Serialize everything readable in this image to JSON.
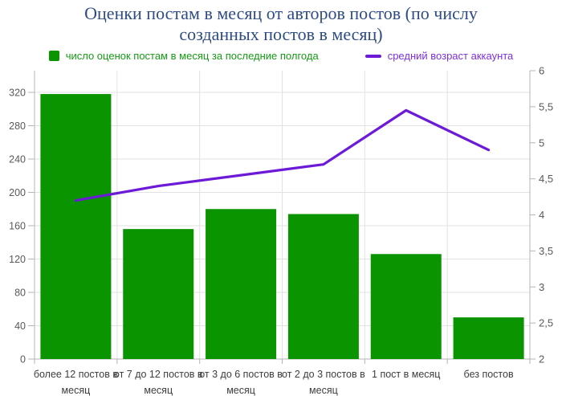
{
  "title": "Оценки постам в месяц от авторов постов (по числу созданных постов в месяц)",
  "colors": {
    "title_text": "#2e4c82",
    "bar_green": "#0a9400",
    "line_purple": "#6c1ad8",
    "legend_green_text": "#149c14",
    "legend_purple_text": "#7d30e0",
    "axis_tick_text": "#595959",
    "x_label_text": "#3d3d3d",
    "grid_line": "#e2e2e2",
    "axis_line": "#b5b5b5"
  },
  "legend": [
    {
      "label": "число оценок постам в месяц за последние полгода",
      "swatch": "square"
    },
    {
      "label": "средний возраст аккаунта",
      "swatch": "line"
    }
  ],
  "chart_data": {
    "type": "bar",
    "subtype": "combo-bar-line-dual-axis",
    "title": "Оценки постам в месяц от авторов постов (по числу созданных постов в месяц)",
    "categories": [
      "более 12 постов в месяц",
      "от 7 до 12 постов в месяц",
      "от 3 до 6 постов в месяц",
      "от 2 до 3 постов в месяц",
      "1 пост в месяц",
      "без постов"
    ],
    "category_label_lines": [
      [
        "более 12 постов в",
        "месяц"
      ],
      [
        "от 7 до 12 постов в",
        "месяц"
      ],
      [
        "от 3 до 6 постов в",
        "месяц"
      ],
      [
        "от 2 до 3 постов в",
        "месяц"
      ],
      [
        "1 пост в месяц"
      ],
      [
        "без постов"
      ]
    ],
    "series": [
      {
        "name": "число оценок постам в месяц за последние полгода",
        "type": "bar",
        "axis": "left",
        "values": [
          318,
          156,
          180,
          174,
          126,
          50
        ]
      },
      {
        "name": "средний возраст аккаунта",
        "type": "line",
        "axis": "right",
        "values": [
          4.2,
          4.4,
          4.55,
          4.7,
          5.45,
          4.9
        ]
      }
    ],
    "left_axis": {
      "min": 0,
      "max": 320,
      "tick_step": 40,
      "ticks": [
        0,
        40,
        80,
        120,
        160,
        200,
        240,
        280,
        320
      ]
    },
    "right_axis": {
      "min": 2,
      "max": 6,
      "tick_step": 0.5,
      "ticks": [
        2,
        2.5,
        3,
        3.5,
        4,
        4.5,
        5,
        5.5,
        6
      ],
      "tick_labels": [
        "2",
        "2,5",
        "3",
        "3,5",
        "4",
        "4,5",
        "5",
        "5,5",
        "6"
      ]
    },
    "grid": true,
    "legend_position": "top"
  }
}
